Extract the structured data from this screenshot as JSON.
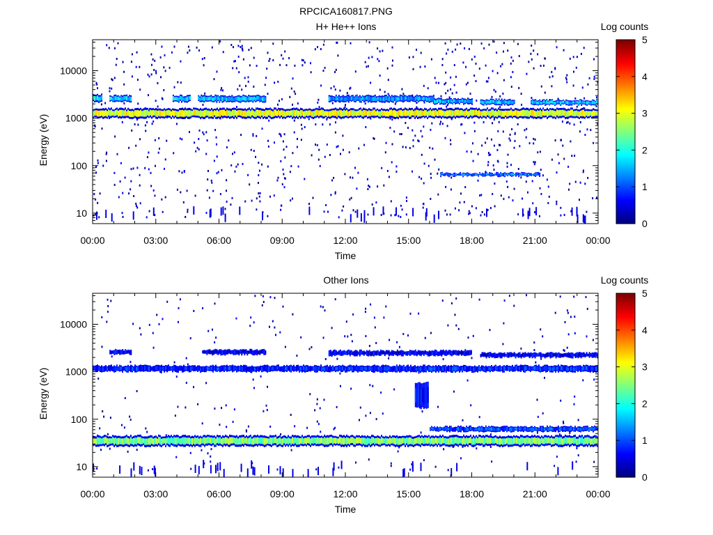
{
  "page_title": "RPCICA160817.PNG",
  "colorbar": {
    "label": "Log counts",
    "ticks": [
      "0",
      "1",
      "2",
      "3",
      "4",
      "5"
    ],
    "min": 0,
    "max": 5
  },
  "chart_data": [
    {
      "type": "heatmap",
      "title": "H+ He++ Ions",
      "xlabel": "Time",
      "ylabel": "Energy (eV)",
      "x_ticks": [
        "00:00",
        "03:00",
        "06:00",
        "09:00",
        "12:00",
        "15:00",
        "18:00",
        "21:00",
        "00:00"
      ],
      "x_range_hours": [
        0,
        24
      ],
      "y_scale": "log",
      "y_range": [
        6,
        45000
      ],
      "y_ticks": [
        "10",
        "100",
        "1000",
        "10000"
      ],
      "colorbar_label": "Log counts",
      "bands": [
        {
          "x": [
            0,
            24
          ],
          "energy": [
            1000,
            1600
          ],
          "value": 3.0
        },
        {
          "x": [
            0.0,
            0.4
          ],
          "energy": [
            2200,
            3200
          ],
          "value": 1.8
        },
        {
          "x": [
            0.8,
            1.8
          ],
          "energy": [
            2200,
            3000
          ],
          "value": 1.8
        },
        {
          "x": [
            3.8,
            4.6
          ],
          "energy": [
            2200,
            3000
          ],
          "value": 1.8
        },
        {
          "x": [
            5.0,
            8.2
          ],
          "energy": [
            2200,
            3000
          ],
          "value": 1.6
        },
        {
          "x": [
            11.2,
            16.2
          ],
          "energy": [
            2200,
            3000
          ],
          "value": 1.4
        },
        {
          "x": [
            16.2,
            18.0
          ],
          "energy": [
            2000,
            2600
          ],
          "value": 1.5
        },
        {
          "x": [
            18.4,
            20.0
          ],
          "energy": [
            1900,
            2500
          ],
          "value": 1.6
        },
        {
          "x": [
            20.8,
            24.0
          ],
          "energy": [
            1900,
            2400
          ],
          "value": 1.6
        },
        {
          "x": [
            16.5,
            21.2
          ],
          "energy": [
            60,
            70
          ],
          "value": 1.2
        }
      ]
    },
    {
      "type": "heatmap",
      "title": "Other Ions",
      "xlabel": "Time",
      "ylabel": "Energy (eV)",
      "x_ticks": [
        "00:00",
        "03:00",
        "06:00",
        "09:00",
        "12:00",
        "15:00",
        "18:00",
        "21:00",
        "00:00"
      ],
      "x_range_hours": [
        0,
        24
      ],
      "y_scale": "log",
      "y_range": [
        6,
        45000
      ],
      "y_ticks": [
        "10",
        "100",
        "1000",
        "10000"
      ],
      "colorbar_label": "Log counts",
      "bands": [
        {
          "x": [
            0,
            24
          ],
          "energy": [
            1000,
            1350
          ],
          "value": 0.8
        },
        {
          "x": [
            0,
            24
          ],
          "energy": [
            27,
            45
          ],
          "value": 2.5
        },
        {
          "x": [
            16.0,
            24.0
          ],
          "energy": [
            55,
            70
          ],
          "value": 1.0
        },
        {
          "x": [
            0.8,
            1.8
          ],
          "energy": [
            2300,
            2900
          ],
          "value": 0.6
        },
        {
          "x": [
            5.2,
            8.2
          ],
          "energy": [
            2300,
            2900
          ],
          "value": 0.5
        },
        {
          "x": [
            11.2,
            18.0
          ],
          "energy": [
            2200,
            2800
          ],
          "value": 0.5
        },
        {
          "x": [
            18.4,
            24.0
          ],
          "energy": [
            2000,
            2500
          ],
          "value": 0.5
        },
        {
          "x": [
            15.3,
            15.9
          ],
          "energy": [
            170,
            600
          ],
          "value": 0.7
        }
      ]
    }
  ]
}
